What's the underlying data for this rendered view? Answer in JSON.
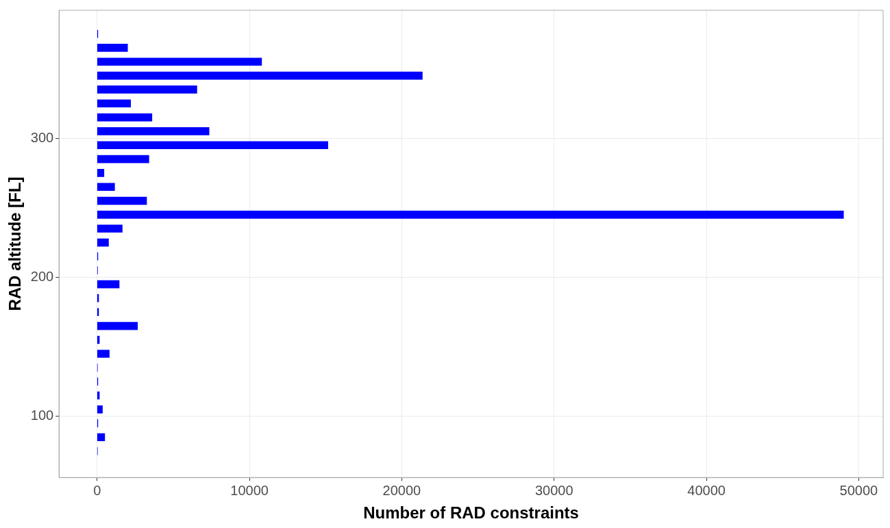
{
  "chart_data": {
    "type": "bar",
    "orientation": "horizontal",
    "xlabel": "Number of RAD constraints",
    "ylabel": "RAD altitude [FL]",
    "x": [
      375,
      365,
      355,
      345,
      335,
      325,
      315,
      305,
      295,
      285,
      275,
      265,
      255,
      245,
      235,
      225,
      215,
      205,
      195,
      185,
      175,
      165,
      155,
      145,
      135,
      125,
      115,
      105,
      95,
      85,
      75
    ],
    "values": [
      50,
      2000,
      10800,
      21350,
      6550,
      2200,
      3600,
      7350,
      15150,
      3400,
      450,
      1150,
      3250,
      49000,
      1650,
      750,
      50,
      30,
      1450,
      100,
      100,
      2650,
      150,
      800,
      20,
      50,
      150,
      350,
      50,
      500,
      20
    ],
    "color": "#0000ff",
    "xlim": [
      -2500,
      51600
    ],
    "xticks": [
      0,
      10000,
      20000,
      30000,
      40000,
      50000
    ],
    "ylim": [
      56,
      392
    ],
    "yticks": [
      100,
      200,
      300
    ],
    "grid": true
  }
}
